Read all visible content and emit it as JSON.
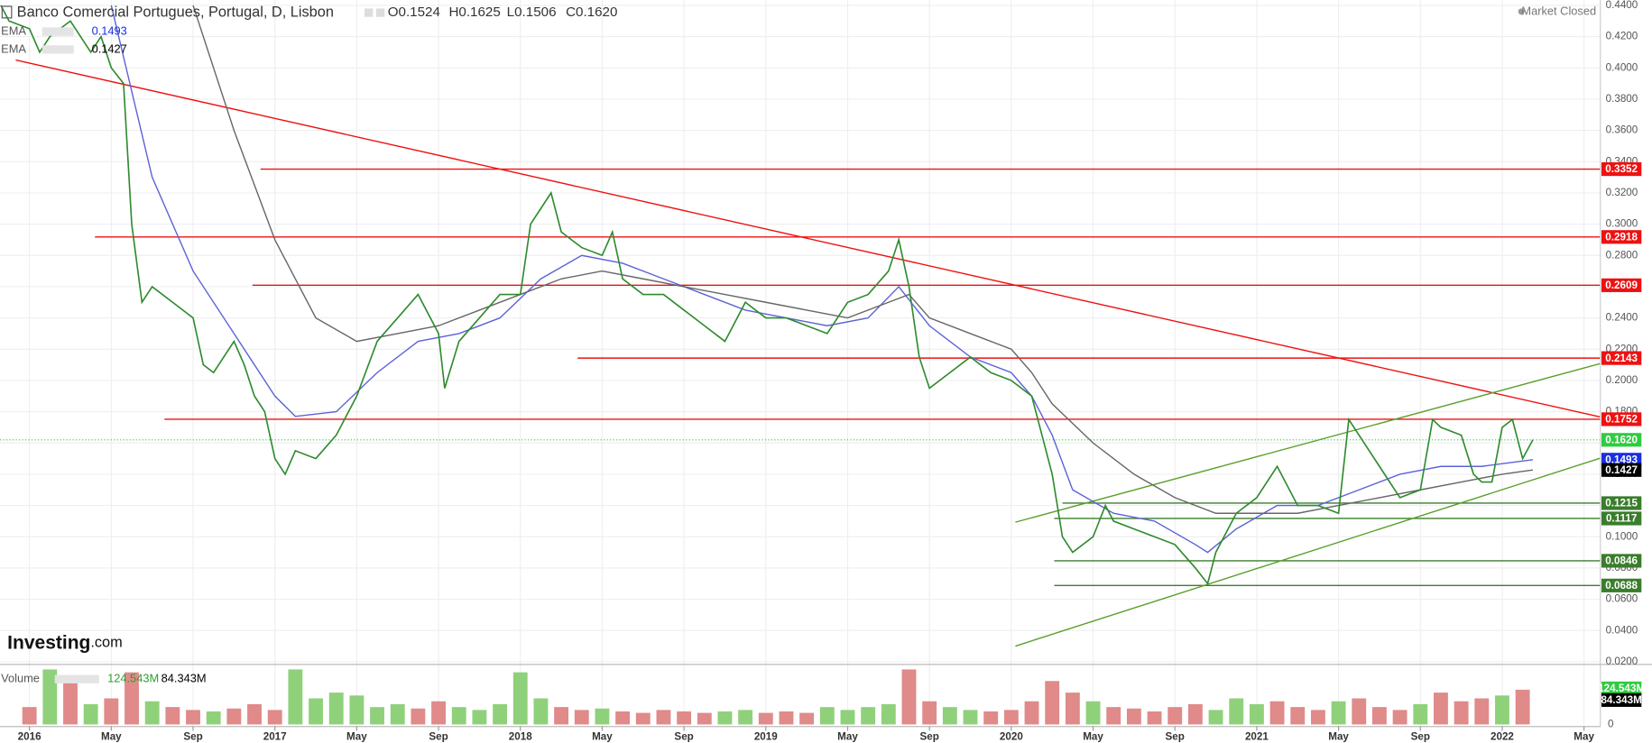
{
  "chart_data": {
    "type": "line",
    "title": "Banco Comercial Portugues, Portugal, D, Lisbon",
    "ohlc": [
      "O0.1524",
      "H0.1625",
      "L0.1506",
      "C0.1620"
    ],
    "status": "Market Closed",
    "brand": [
      "Investing",
      ".com"
    ],
    "color": "#2e8b2e",
    "x": [
      -1.4,
      -1,
      0,
      0.5,
      1,
      2,
      3,
      3.5,
      4,
      4.6,
      5,
      5.5,
      6,
      7,
      8,
      8.5,
      9,
      10,
      10.5,
      11,
      11.5,
      12,
      12.5,
      13,
      14,
      15,
      16,
      17,
      18,
      19,
      20,
      20.3,
      21,
      22,
      23,
      24,
      24.5,
      25,
      25.5,
      26,
      27,
      28,
      28.5,
      29,
      30,
      31,
      32,
      33,
      34,
      35,
      36,
      37,
      38,
      39,
      40,
      41,
      42,
      42.5,
      43,
      43.5,
      44,
      45,
      46,
      47,
      48,
      49,
      49.5,
      50,
      50.5,
      51,
      52,
      52.6,
      53,
      54,
      55,
      56,
      57,
      57.6,
      58,
      59,
      60,
      61,
      62,
      63,
      64,
      64.5,
      65,
      66,
      67,
      68,
      68.6,
      69,
      70,
      70.6,
      71,
      71.5,
      72,
      72.5,
      73,
      73.5
    ],
    "values": [
      0.44,
      0.43,
      0.425,
      0.41,
      0.42,
      0.43,
      0.41,
      0.42,
      0.4,
      0.39,
      0.3,
      0.25,
      0.26,
      0.25,
      0.24,
      0.21,
      0.205,
      0.225,
      0.21,
      0.19,
      0.18,
      0.15,
      0.14,
      0.155,
      0.15,
      0.165,
      0.19,
      0.225,
      0.24,
      0.255,
      0.23,
      0.195,
      0.225,
      0.24,
      0.255,
      0.255,
      0.3,
      0.31,
      0.32,
      0.295,
      0.285,
      0.28,
      0.295,
      0.265,
      0.255,
      0.255,
      0.245,
      0.235,
      0.225,
      0.25,
      0.24,
      0.24,
      0.235,
      0.23,
      0.25,
      0.255,
      0.27,
      0.29,
      0.26,
      0.215,
      0.195,
      0.205,
      0.215,
      0.205,
      0.2,
      0.19,
      0.165,
      0.14,
      0.1,
      0.09,
      0.1,
      0.12,
      0.11,
      0.105,
      0.1,
      0.095,
      0.08,
      0.07,
      0.09,
      0.115,
      0.125,
      0.145,
      0.12,
      0.12,
      0.115,
      0.175,
      0.165,
      0.145,
      0.125,
      0.13,
      0.175,
      0.17,
      0.165,
      0.14,
      0.135,
      0.135,
      0.17,
      0.175,
      0.15,
      0.162
    ],
    "indicators": [
      {
        "name": "EMA",
        "color": "#5b63d6",
        "tag_color": "#1b2ee0",
        "last": {
          "value": 0.1493,
          "label": "0.1493"
        },
        "x": [
          4,
          6,
          8,
          10,
          12,
          13,
          15,
          17,
          19,
          21,
          23,
          25,
          27,
          29,
          31,
          33,
          35,
          37,
          39,
          41,
          42.5,
          44,
          46,
          48,
          49,
          50,
          51,
          53,
          55,
          57,
          57.6,
          59,
          61,
          63,
          65,
          67,
          69,
          71,
          73.5
        ],
        "values": [
          0.44,
          0.33,
          0.27,
          0.23,
          0.19,
          0.177,
          0.18,
          0.205,
          0.225,
          0.23,
          0.24,
          0.265,
          0.28,
          0.275,
          0.265,
          0.255,
          0.245,
          0.24,
          0.235,
          0.24,
          0.26,
          0.235,
          0.215,
          0.205,
          0.19,
          0.165,
          0.13,
          0.115,
          0.11,
          0.095,
          0.09,
          0.105,
          0.12,
          0.12,
          0.13,
          0.14,
          0.145,
          0.145,
          0.1493
        ]
      },
      {
        "name": "EMA",
        "color": "#666666",
        "tag_color": "#000000",
        "last": {
          "value": 0.1427,
          "label": "0.1427"
        },
        "x": [
          8,
          10,
          12,
          14,
          16,
          18,
          20,
          22,
          24,
          26,
          28,
          30,
          32,
          34,
          36,
          38,
          40,
          42,
          43,
          44,
          46,
          48,
          49,
          50,
          52,
          54,
          56,
          58,
          60,
          62,
          64,
          66,
          68,
          70,
          72,
          73.5
        ],
        "values": [
          0.44,
          0.36,
          0.29,
          0.24,
          0.225,
          0.23,
          0.235,
          0.245,
          0.255,
          0.265,
          0.27,
          0.265,
          0.26,
          0.255,
          0.25,
          0.245,
          0.24,
          0.25,
          0.255,
          0.24,
          0.23,
          0.22,
          0.205,
          0.185,
          0.16,
          0.14,
          0.125,
          0.115,
          0.115,
          0.115,
          0.12,
          0.125,
          0.13,
          0.135,
          0.14,
          0.1427
        ]
      }
    ],
    "current": {
      "value": 0.162,
      "label": "0.1620",
      "color": "#2ecc40"
    },
    "levels": [
      {
        "value": 0.3352,
        "label": "0.3352",
        "color": "#ee1111",
        "x_start": 11.3
      },
      {
        "value": 0.2918,
        "label": "0.2918",
        "color": "#ee1111",
        "x_start": 3.2
      },
      {
        "value": 0.2609,
        "label": "0.2609",
        "color": "#ee1111",
        "x_start": 10.9
      },
      {
        "value": 0.2143,
        "label": "0.2143",
        "color": "#ee1111",
        "x_start": 26.8
      },
      {
        "value": 0.1752,
        "label": "0.1752",
        "color": "#ee1111",
        "x_start": 6.6
      },
      {
        "value": 0.1215,
        "label": "0.1215",
        "color": "#3a7d2c",
        "x_start": 50.5
      },
      {
        "value": 0.1117,
        "label": "0.1117",
        "color": "#3a7d2c",
        "x_start": 50.1
      },
      {
        "value": 0.0846,
        "label": "0.0846",
        "color": "#3a7d2c",
        "x_start": 50.1
      },
      {
        "value": 0.0688,
        "label": "0.0688",
        "color": "#3a7d2c",
        "x_start": 50.1
      }
    ],
    "trendlines": [
      {
        "color": "#ee1111",
        "x": [
          -0.67,
          76.8
        ],
        "y": [
          0.405,
          0.1766
        ]
      },
      {
        "color": "#5aa02c",
        "x": [
          48.2,
          76.8
        ],
        "y": [
          0.1093,
          0.2108
        ]
      },
      {
        "color": "#5aa02c",
        "x": [
          48.2,
          76.8
        ],
        "y": [
          0.03,
          0.1503
        ]
      }
    ],
    "xlim": [
      -1.44,
      76.8
    ],
    "xticks": [
      {
        "value": 0,
        "label": "2016"
      },
      {
        "value": 4,
        "label": "May"
      },
      {
        "value": 8,
        "label": "Sep"
      },
      {
        "value": 12,
        "label": "2017"
      },
      {
        "value": 16,
        "label": "May"
      },
      {
        "value": 20,
        "label": "Sep"
      },
      {
        "value": 24,
        "label": "2018"
      },
      {
        "value": 28,
        "label": "May"
      },
      {
        "value": 32,
        "label": "Sep"
      },
      {
        "value": 36,
        "label": "2019"
      },
      {
        "value": 40,
        "label": "May"
      },
      {
        "value": 44,
        "label": "Sep"
      },
      {
        "value": 48,
        "label": "2020"
      },
      {
        "value": 52,
        "label": "May"
      },
      {
        "value": 56,
        "label": "Sep"
      },
      {
        "value": 60,
        "label": "2021"
      },
      {
        "value": 64,
        "label": "May"
      },
      {
        "value": 68,
        "label": "Sep"
      },
      {
        "value": 72,
        "label": "2022"
      },
      {
        "value": 76,
        "label": "May"
      }
    ],
    "ylim": [
      0.0183,
      0.4434
    ],
    "yticks": [
      {
        "value": 0.02,
        "label": "0.0200"
      },
      {
        "value": 0.04,
        "label": "0.0400"
      },
      {
        "value": 0.06,
        "label": "0.0600"
      },
      {
        "value": 0.08,
        "label": "0.0800"
      },
      {
        "value": 0.1,
        "label": "0.1000"
      },
      {
        "value": 0.12,
        "label": "0.1200"
      },
      {
        "value": 0.14,
        "label": "0.1400"
      },
      {
        "value": 0.16,
        "label": "0.1600"
      },
      {
        "value": 0.18,
        "label": "0.1800"
      },
      {
        "value": 0.2,
        "label": "0.2000"
      },
      {
        "value": 0.22,
        "label": "0.2200"
      },
      {
        "value": 0.24,
        "label": "0.2400"
      },
      {
        "value": 0.26,
        "label": "0.2600"
      },
      {
        "value": 0.28,
        "label": "0.2800"
      },
      {
        "value": 0.3,
        "label": "0.3000"
      },
      {
        "value": 0.32,
        "label": "0.3200"
      },
      {
        "value": 0.34,
        "label": "0.3400"
      },
      {
        "value": 0.36,
        "label": "0.3600"
      },
      {
        "value": 0.38,
        "label": "0.3800"
      },
      {
        "value": 0.4,
        "label": "0.4000"
      },
      {
        "value": 0.42,
        "label": "0.4200"
      },
      {
        "value": 0.44,
        "label": "0.4400"
      }
    ],
    "grid": true,
    "volume": {
      "name": "Volume",
      "up_color": "#8fd17a",
      "down_color": "#e08a8a",
      "x": [
        0,
        1,
        2,
        3,
        4,
        5,
        6,
        7,
        8,
        9,
        10,
        11,
        12,
        13,
        14,
        15,
        16,
        17,
        18,
        19,
        20,
        21,
        22,
        23,
        24,
        25,
        26,
        27,
        28,
        29,
        30,
        31,
        32,
        33,
        34,
        35,
        36,
        37,
        38,
        39,
        40,
        41,
        42,
        43,
        44,
        45,
        46,
        47,
        48,
        49,
        50,
        51,
        52,
        53,
        54,
        55,
        56,
        57,
        58,
        59,
        60,
        61,
        62,
        63,
        64,
        65,
        66,
        67,
        68,
        69,
        70,
        71,
        72,
        73
      ],
      "values": [
        60,
        190,
        150,
        70,
        90,
        180,
        80,
        60,
        50,
        45,
        55,
        70,
        50,
        190,
        90,
        110,
        100,
        60,
        70,
        55,
        80,
        60,
        50,
        70,
        180,
        90,
        60,
        50,
        55,
        45,
        40,
        50,
        45,
        40,
        45,
        50,
        40,
        45,
        40,
        60,
        50,
        60,
        70,
        190,
        80,
        60,
        50,
        45,
        50,
        80,
        150,
        110,
        80,
        60,
        55,
        45,
        60,
        70,
        50,
        90,
        70,
        80,
        60,
        50,
        80,
        90,
        60,
        50,
        70,
        110,
        80,
        90,
        100,
        120
      ],
      "ylim": [
        0,
        200
      ],
      "yticks": [
        0
      ],
      "last": {
        "value": 124.543,
        "label": "124.543M",
        "color": "#2ecc40"
      },
      "average": {
        "value": 84.343,
        "label": "84.343M",
        "color": "#000000"
      }
    }
  }
}
